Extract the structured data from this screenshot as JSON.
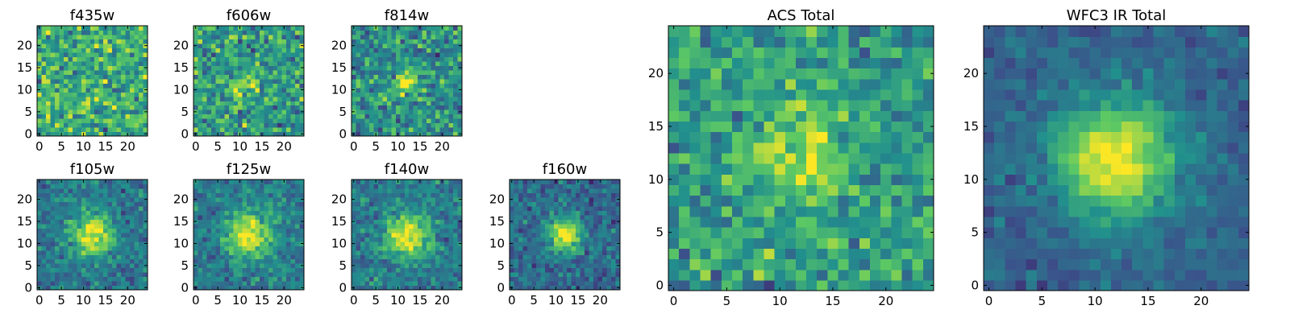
{
  "figure": {
    "panel_count": 9,
    "colormap": "viridis",
    "colormap_stops": [
      "#440154",
      "#3b528b",
      "#21908d",
      "#5dc963",
      "#fde725"
    ]
  },
  "chart_data": [
    {
      "type": "heatmap",
      "title": "f435w",
      "xlim": [
        0,
        25
      ],
      "ylim": [
        0,
        25
      ],
      "xticks": [
        0,
        5,
        10,
        15,
        20
      ],
      "yticks": [
        0,
        5,
        10,
        15,
        20
      ],
      "grid": false,
      "seed": 11,
      "noise": 0.95,
      "source_amp": 0.0,
      "source_center": [
        12,
        12
      ],
      "source_sigma": 3.0,
      "offset": 0.62
    },
    {
      "type": "heatmap",
      "title": "f606w",
      "xlim": [
        0,
        25
      ],
      "ylim": [
        0,
        25
      ],
      "xticks": [
        0,
        5,
        10,
        15,
        20
      ],
      "yticks": [
        0,
        5,
        10,
        15,
        20
      ],
      "grid": false,
      "seed": 23,
      "noise": 0.9,
      "source_amp": 0.25,
      "source_center": [
        11,
        11
      ],
      "source_sigma": 2.0,
      "offset": 0.55
    },
    {
      "type": "heatmap",
      "title": "f814w",
      "xlim": [
        0,
        25
      ],
      "ylim": [
        0,
        25
      ],
      "xticks": [
        0,
        5,
        10,
        15,
        20
      ],
      "yticks": [
        0,
        5,
        10,
        15,
        20
      ],
      "grid": false,
      "seed": 37,
      "noise": 0.85,
      "source_amp": 0.4,
      "source_center": [
        12,
        12
      ],
      "source_sigma": 2.0,
      "offset": 0.5
    },
    {
      "type": "heatmap",
      "title": "f105w",
      "xlim": [
        0,
        25
      ],
      "ylim": [
        0,
        25
      ],
      "xticks": [
        0,
        5,
        10,
        15,
        20
      ],
      "yticks": [
        0,
        5,
        10,
        15,
        20
      ],
      "grid": false,
      "seed": 41,
      "noise": 0.55,
      "source_amp": 0.6,
      "source_center": [
        12,
        12
      ],
      "source_sigma": 3.2,
      "offset": 0.4
    },
    {
      "type": "heatmap",
      "title": "f125w",
      "xlim": [
        0,
        25
      ],
      "ylim": [
        0,
        25
      ],
      "xticks": [
        0,
        5,
        10,
        15,
        20
      ],
      "yticks": [
        0,
        5,
        10,
        15,
        20
      ],
      "grid": false,
      "seed": 53,
      "noise": 0.55,
      "source_amp": 0.6,
      "source_center": [
        12,
        12
      ],
      "source_sigma": 3.4,
      "offset": 0.42
    },
    {
      "type": "heatmap",
      "title": "f140w",
      "xlim": [
        0,
        25
      ],
      "ylim": [
        0,
        25
      ],
      "xticks": [
        0,
        5,
        10,
        15,
        20
      ],
      "yticks": [
        0,
        5,
        10,
        15,
        20
      ],
      "grid": false,
      "seed": 67,
      "noise": 0.55,
      "source_amp": 0.6,
      "source_center": [
        12,
        12
      ],
      "source_sigma": 3.4,
      "offset": 0.42
    },
    {
      "type": "heatmap",
      "title": "f160w",
      "xlim": [
        0,
        25
      ],
      "ylim": [
        0,
        25
      ],
      "xticks": [
        0,
        5,
        10,
        15,
        20
      ],
      "yticks": [
        0,
        5,
        10,
        15,
        20
      ],
      "grid": false,
      "seed": 79,
      "noise": 0.55,
      "source_amp": 0.65,
      "source_center": [
        12,
        12
      ],
      "source_sigma": 2.6,
      "offset": 0.35
    },
    {
      "type": "heatmap",
      "title": "ACS Total",
      "xlim": [
        0,
        25
      ],
      "ylim": [
        0,
        25
      ],
      "xticks": [
        0,
        5,
        10,
        15,
        20
      ],
      "yticks": [
        0,
        5,
        10,
        15,
        20
      ],
      "grid": false,
      "seed": 97,
      "noise": 0.75,
      "source_amp": 0.35,
      "source_center": [
        12,
        12
      ],
      "source_sigma": 2.8,
      "offset": 0.55
    },
    {
      "type": "heatmap",
      "title": "WFC3 IR Total",
      "xlim": [
        0,
        25
      ],
      "ylim": [
        0,
        25
      ],
      "xticks": [
        0,
        5,
        10,
        15,
        20
      ],
      "yticks": [
        0,
        5,
        10,
        15,
        20
      ],
      "grid": false,
      "seed": 113,
      "noise": 0.35,
      "source_amp": 0.7,
      "source_center": [
        12,
        12
      ],
      "source_sigma": 3.8,
      "offset": 0.32
    }
  ]
}
